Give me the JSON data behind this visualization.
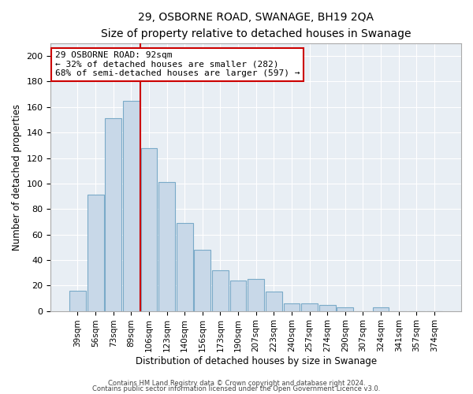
{
  "title": "29, OSBORNE ROAD, SWANAGE, BH19 2QA",
  "subtitle": "Size of property relative to detached houses in Swanage",
  "xlabel": "Distribution of detached houses by size in Swanage",
  "ylabel": "Number of detached properties",
  "bar_labels": [
    "39sqm",
    "56sqm",
    "73sqm",
    "89sqm",
    "106sqm",
    "123sqm",
    "140sqm",
    "156sqm",
    "173sqm",
    "190sqm",
    "207sqm",
    "223sqm",
    "240sqm",
    "257sqm",
    "274sqm",
    "290sqm",
    "307sqm",
    "324sqm",
    "341sqm",
    "357sqm",
    "374sqm"
  ],
  "bar_values": [
    16,
    91,
    151,
    165,
    128,
    101,
    69,
    48,
    32,
    24,
    25,
    15,
    6,
    6,
    5,
    3,
    0,
    3,
    0,
    0,
    0
  ],
  "bar_color": "#c8d8e8",
  "bar_edge_color": "#7aaac8",
  "vline_color": "#cc0000",
  "annotation_title": "29 OSBORNE ROAD: 92sqm",
  "annotation_line1": "← 32% of detached houses are smaller (282)",
  "annotation_line2": "68% of semi-detached houses are larger (597) →",
  "annotation_box_edge": "#cc0000",
  "ylim": [
    0,
    210
  ],
  "yticks": [
    0,
    20,
    40,
    60,
    80,
    100,
    120,
    140,
    160,
    180,
    200
  ],
  "footnote1": "Contains HM Land Registry data © Crown copyright and database right 2024.",
  "footnote2": "Contains public sector information licensed under the Open Government Licence v3.0.",
  "bg_color": "#e8eef4"
}
